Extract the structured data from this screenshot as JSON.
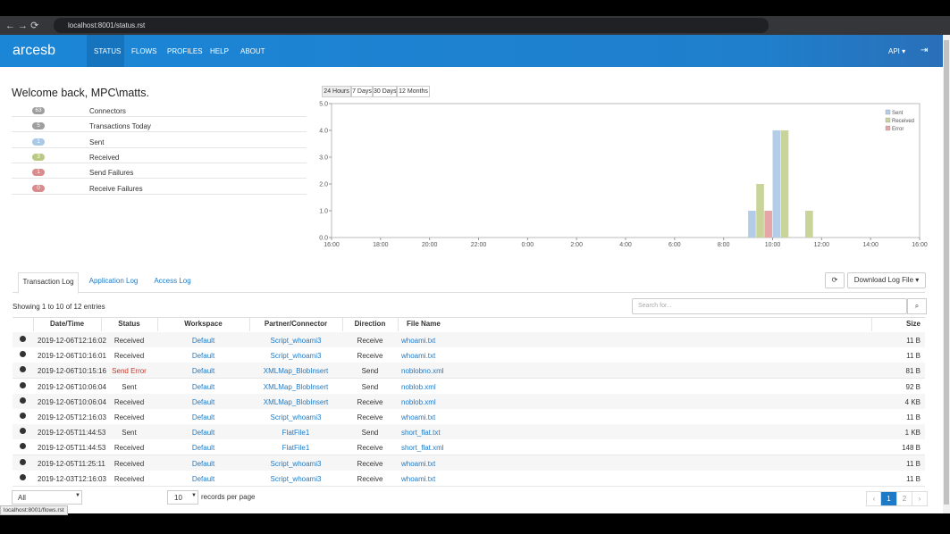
{
  "browser": {
    "url": "localhost:8001/status.rst",
    "status_url": "localhost:8001/flows.rst"
  },
  "nav": {
    "logo": "arcesb",
    "items": [
      "STATUS",
      "FLOWS",
      "PROFILES",
      "HELP",
      "ABOUT"
    ],
    "api": "API ▾"
  },
  "welcome": "Welcome back, MPC\\matts.",
  "stats": [
    {
      "count": "63",
      "label": "Connectors",
      "color": "#9e9e9e"
    },
    {
      "count": "5",
      "label": "Transactions Today",
      "color": "#9e9e9e"
    },
    {
      "count": "1",
      "label": "Sent",
      "color": "#a9c8e6"
    },
    {
      "count": "3",
      "label": "Received",
      "color": "#b9c982"
    },
    {
      "count": "1",
      "label": "Send Failures",
      "color": "#d88c8e"
    },
    {
      "count": "0",
      "label": "Receive Failures",
      "color": "#d88c8e"
    }
  ],
  "periods": [
    "24 Hours",
    "7 Days",
    "30 Days",
    "12 Months"
  ],
  "chart": {
    "type": "bar",
    "xlim": [
      0,
      24
    ],
    "ylim": [
      0,
      5
    ],
    "xticks": [
      {
        "value": 0,
        "label": "16:00"
      },
      {
        "value": 2,
        "label": "18:00"
      },
      {
        "value": 4,
        "label": "20:00"
      },
      {
        "value": 6,
        "label": "22:00"
      },
      {
        "value": 8,
        "label": "0:00"
      },
      {
        "value": 10,
        "label": "2:00"
      },
      {
        "value": 12,
        "label": "4:00"
      },
      {
        "value": 14,
        "label": "6:00"
      },
      {
        "value": 16,
        "label": "8:00"
      },
      {
        "value": 18,
        "label": "10:00"
      },
      {
        "value": 20,
        "label": "12:00"
      },
      {
        "value": 22,
        "label": "14:00"
      },
      {
        "value": 24,
        "label": "16:00"
      }
    ],
    "yticks": [
      {
        "value": 0,
        "label": "0.0"
      },
      {
        "value": 1,
        "label": "1.0"
      },
      {
        "value": 2,
        "label": "2.0"
      },
      {
        "value": 3,
        "label": "3.0"
      },
      {
        "value": 4,
        "label": "4.0"
      },
      {
        "value": 5,
        "label": "5.0"
      }
    ],
    "x": [
      17,
      18,
      19
    ],
    "series": [
      {
        "name": "Sent",
        "color": "#b3cde8",
        "values": [
          1,
          4,
          null
        ]
      },
      {
        "name": "Received",
        "color": "#c8d49a",
        "values": [
          2,
          4,
          1
        ]
      },
      {
        "name": "Error",
        "color": "#e6a6a8",
        "values": [
          1,
          null,
          null
        ]
      }
    ],
    "legend": "top-right"
  },
  "tabs": [
    "Transaction Log",
    "Application Log",
    "Access Log"
  ],
  "download": "Download Log File ▾",
  "showing": "Showing 1 to 10 of 12 entries",
  "search_placeholder": "Search for...",
  "table": {
    "columns": [
      "Date/Time",
      "Status",
      "Workspace",
      "Partner/Connector",
      "Direction",
      "File Name",
      "Size"
    ],
    "rows": [
      [
        "2019-12-06T12:16:02",
        "Received",
        "Default",
        "Script_whoami3",
        "Receive",
        "whoami.txt",
        "11 B"
      ],
      [
        "2019-12-06T10:16:01",
        "Received",
        "Default",
        "Script_whoami3",
        "Receive",
        "whoami.txt",
        "11 B"
      ],
      [
        "2019-12-06T10:15:16",
        "Send Error",
        "Default",
        "XMLMap_BlobInsert",
        "Send",
        "noblobno.xml",
        "81 B"
      ],
      [
        "2019-12-06T10:06:04",
        "Sent",
        "Default",
        "XMLMap_BlobInsert",
        "Send",
        "noblob.xml",
        "92 B"
      ],
      [
        "2019-12-06T10:06:04",
        "Received",
        "Default",
        "XMLMap_BlobInsert",
        "Receive",
        "noblob.xml",
        "4 KB"
      ],
      [
        "2019-12-05T12:16:03",
        "Received",
        "Default",
        "Script_whoami3",
        "Receive",
        "whoami.txt",
        "11 B"
      ],
      [
        "2019-12-05T11:44:53",
        "Sent",
        "Default",
        "FlatFile1",
        "Send",
        "short_flat.txt",
        "1 KB"
      ],
      [
        "2019-12-05T11:44:53",
        "Received",
        "Default",
        "FlatFile1",
        "Receive",
        "short_flat.xml",
        "148 B"
      ],
      [
        "2019-12-05T11:25:11",
        "Received",
        "Default",
        "Script_whoami3",
        "Receive",
        "whoami.txt",
        "11 B"
      ],
      [
        "2019-12-03T12:16:03",
        "Received",
        "Default",
        "Script_whoami3",
        "Receive",
        "whoami.txt",
        "11 B"
      ]
    ]
  },
  "footer": {
    "filter": "All",
    "page_size": "10",
    "page_size_label": "records per page",
    "pages": [
      "‹",
      "1",
      "2",
      "›"
    ]
  }
}
